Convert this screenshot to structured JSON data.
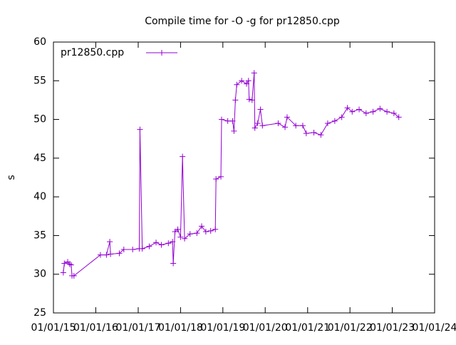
{
  "chart_data": {
    "type": "line",
    "title": "Compile time for -O -g for pr12850.cpp",
    "ylabel": "s",
    "x": [
      "2015-03-27",
      "2015-04-05",
      "2015-05-04",
      "2015-05-21",
      "2015-06-03",
      "2015-06-10",
      "2015-06-27",
      "2016-02-10",
      "2016-04-02",
      "2016-05-01",
      "2016-05-07",
      "2016-07-22",
      "2016-08-30",
      "2016-11-14",
      "2017-01-10",
      "2017-01-16",
      "2017-02-05",
      "2017-04-06",
      "2017-06-04",
      "2017-07-20",
      "2017-09-18",
      "2017-10-24",
      "2017-10-30",
      "2017-11-14",
      "2017-12-08",
      "2018-01-01",
      "2018-01-18",
      "2018-02-05",
      "2018-03-24",
      "2018-05-22",
      "2018-07-02",
      "2018-08-07",
      "2018-09-18",
      "2018-10-28",
      "2018-11-03",
      "2018-12-15",
      "2018-12-21",
      "2019-02-12",
      "2019-03-26",
      "2019-04-07",
      "2019-04-19",
      "2019-05-01",
      "2019-06-12",
      "2019-07-24",
      "2019-08-10",
      "2019-08-16",
      "2019-09-10",
      "2019-09-28",
      "2019-10-04",
      "2019-10-28",
      "2019-11-21",
      "2019-12-08",
      "2020-04-22",
      "2020-06-20",
      "2020-07-08",
      "2020-09-21",
      "2020-11-20",
      "2020-12-20",
      "2021-02-24",
      "2021-04-25",
      "2021-06-23",
      "2021-08-23",
      "2021-10-22",
      "2021-12-10",
      "2022-01-20",
      "2022-03-21",
      "2022-05-20",
      "2022-07-19",
      "2022-09-17",
      "2022-11-16",
      "2023-01-15",
      "2023-02-26"
    ],
    "series": [
      {
        "name": "pr12850.cpp",
        "color": "#9400d3",
        "values": [
          30.2,
          31.4,
          31.6,
          31.3,
          31.2,
          29.8,
          29.8,
          32.5,
          32.5,
          34.2,
          32.6,
          32.7,
          33.2,
          33.2,
          33.3,
          48.7,
          33.3,
          33.6,
          34.1,
          33.8,
          34.0,
          34.2,
          31.4,
          35.5,
          35.8,
          34.8,
          45.2,
          34.6,
          35.2,
          35.3,
          36.2,
          35.5,
          35.6,
          35.8,
          42.3,
          42.6,
          50.0,
          49.8,
          49.8,
          48.5,
          52.5,
          54.5,
          55.0,
          54.6,
          55.0,
          52.6,
          52.5,
          56.0,
          48.9,
          49.5,
          51.3,
          49.2,
          49.5,
          49.0,
          50.3,
          49.2,
          49.2,
          48.2,
          48.3,
          48.0,
          49.5,
          49.8,
          50.3,
          51.5,
          51.0,
          51.3,
          50.8,
          51.0,
          51.4,
          51.0,
          50.8,
          50.3
        ]
      }
    ],
    "xlim": [
      "2015-01-01",
      "2024-01-01"
    ],
    "xticks": [
      {
        "value": "2015-01-01",
        "label": "01/01/15"
      },
      {
        "value": "2016-01-01",
        "label": "01/01/16"
      },
      {
        "value": "2017-01-01",
        "label": "01/01/17"
      },
      {
        "value": "2018-01-01",
        "label": "01/01/18"
      },
      {
        "value": "2019-01-01",
        "label": "01/01/19"
      },
      {
        "value": "2020-01-01",
        "label": "01/01/20"
      },
      {
        "value": "2021-01-01",
        "label": "01/01/21"
      },
      {
        "value": "2022-01-01",
        "label": "01/01/22"
      },
      {
        "value": "2023-01-01",
        "label": "01/01/23"
      },
      {
        "value": "2024-01-01",
        "label": "01/01/24"
      }
    ],
    "ylim": [
      25,
      60
    ],
    "yticks": [
      25,
      30,
      35,
      40,
      45,
      50,
      55,
      60
    ],
    "legend": "top-left"
  }
}
